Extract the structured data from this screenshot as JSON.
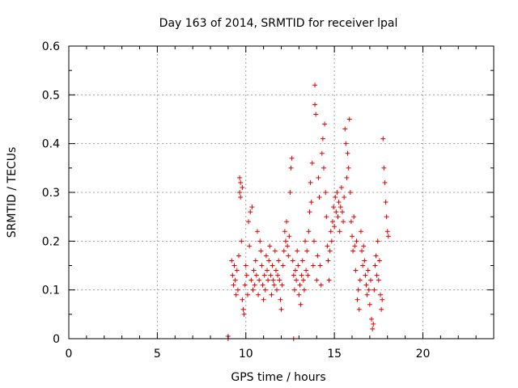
{
  "chart_data": {
    "type": "scatter",
    "title": "Day 163 of 2014, SRMTID for receiver lpal",
    "xlabel": "GPS time / hours",
    "ylabel": "SRMTID / TECUs",
    "xlim": [
      0,
      24
    ],
    "ylim": [
      0,
      0.6
    ],
    "xticks": [
      0,
      5,
      10,
      15,
      20
    ],
    "xtick_labels": [
      "0",
      "5",
      "10",
      "15",
      "20"
    ],
    "yticks": [
      0,
      0.1,
      0.2,
      0.3,
      0.4,
      0.5,
      0.6
    ],
    "ytick_labels": [
      "0",
      "0.1",
      "0.2",
      "0.3",
      "0.4",
      "0.5",
      "0.6"
    ],
    "grid": true,
    "marker": "+",
    "color": "#e00000",
    "series": [
      {
        "name": "SRMTID",
        "points": [
          [
            9.0,
            0.0
          ],
          [
            9.0,
            0.005
          ],
          [
            12.7,
            0.0
          ],
          [
            9.2,
            0.16
          ],
          [
            9.25,
            0.13
          ],
          [
            9.3,
            0.11
          ],
          [
            9.35,
            0.15
          ],
          [
            9.4,
            0.12
          ],
          [
            9.45,
            0.09
          ],
          [
            9.5,
            0.14
          ],
          [
            9.55,
            0.1
          ],
          [
            9.6,
            0.17
          ],
          [
            9.65,
            0.3
          ],
          [
            9.65,
            0.33
          ],
          [
            9.7,
            0.29
          ],
          [
            9.7,
            0.32
          ],
          [
            9.75,
            0.2
          ],
          [
            9.8,
            0.31
          ],
          [
            9.8,
            0.08
          ],
          [
            9.85,
            0.06
          ],
          [
            9.9,
            0.05
          ],
          [
            9.95,
            0.11
          ],
          [
            10.0,
            0.15
          ],
          [
            10.05,
            0.13
          ],
          [
            10.1,
            0.09
          ],
          [
            10.15,
            0.24
          ],
          [
            10.2,
            0.19
          ],
          [
            10.25,
            0.26
          ],
          [
            10.3,
            0.12
          ],
          [
            10.35,
            0.27
          ],
          [
            10.4,
            0.1
          ],
          [
            10.45,
            0.14
          ],
          [
            10.5,
            0.11
          ],
          [
            10.55,
            0.16
          ],
          [
            10.6,
            0.13
          ],
          [
            10.65,
            0.22
          ],
          [
            10.7,
            0.09
          ],
          [
            10.75,
            0.12
          ],
          [
            10.8,
            0.2
          ],
          [
            10.85,
            0.18
          ],
          [
            10.9,
            0.15
          ],
          [
            10.95,
            0.11
          ],
          [
            11.0,
            0.08
          ],
          [
            11.05,
            0.13
          ],
          [
            11.1,
            0.1
          ],
          [
            11.15,
            0.17
          ],
          [
            11.2,
            0.14
          ],
          [
            11.25,
            0.12
          ],
          [
            11.3,
            0.16
          ],
          [
            11.35,
            0.19
          ],
          [
            11.4,
            0.13
          ],
          [
            11.45,
            0.09
          ],
          [
            11.5,
            0.15
          ],
          [
            11.55,
            0.12
          ],
          [
            11.6,
            0.11
          ],
          [
            11.65,
            0.18
          ],
          [
            11.7,
            0.14
          ],
          [
            11.75,
            0.1
          ],
          [
            11.8,
            0.13
          ],
          [
            11.85,
            0.16
          ],
          [
            11.9,
            0.12
          ],
          [
            11.95,
            0.08
          ],
          [
            12.0,
            0.06
          ],
          [
            12.05,
            0.11
          ],
          [
            12.1,
            0.15
          ],
          [
            12.15,
            0.18
          ],
          [
            12.2,
            0.22
          ],
          [
            12.25,
            0.2
          ],
          [
            12.3,
            0.24
          ],
          [
            12.35,
            0.19
          ],
          [
            12.4,
            0.17
          ],
          [
            12.45,
            0.21
          ],
          [
            12.5,
            0.3
          ],
          [
            12.55,
            0.35
          ],
          [
            12.6,
            0.37
          ],
          [
            12.65,
            0.16
          ],
          [
            12.7,
            0.13
          ],
          [
            12.75,
            0.1
          ],
          [
            12.8,
            0.14
          ],
          [
            12.85,
            0.12
          ],
          [
            12.9,
            0.18
          ],
          [
            12.95,
            0.15
          ],
          [
            13.0,
            0.09
          ],
          [
            13.05,
            0.11
          ],
          [
            13.1,
            0.07
          ],
          [
            13.15,
            0.13
          ],
          [
            13.2,
            0.16
          ],
          [
            13.25,
            0.12
          ],
          [
            13.3,
            0.1
          ],
          [
            13.35,
            0.2
          ],
          [
            13.4,
            0.14
          ],
          [
            13.45,
            0.18
          ],
          [
            13.5,
            0.13
          ],
          [
            13.55,
            0.22
          ],
          [
            13.6,
            0.26
          ],
          [
            13.65,
            0.32
          ],
          [
            13.7,
            0.28
          ],
          [
            13.75,
            0.36
          ],
          [
            13.8,
            0.15
          ],
          [
            13.85,
            0.2
          ],
          [
            13.9,
            0.52
          ],
          [
            13.9,
            0.48
          ],
          [
            13.95,
            0.46
          ],
          [
            14.0,
            0.12
          ],
          [
            14.05,
            0.17
          ],
          [
            14.1,
            0.33
          ],
          [
            14.15,
            0.29
          ],
          [
            14.2,
            0.15
          ],
          [
            14.25,
            0.11
          ],
          [
            14.3,
            0.38
          ],
          [
            14.35,
            0.41
          ],
          [
            14.4,
            0.35
          ],
          [
            14.45,
            0.44
          ],
          [
            14.5,
            0.3
          ],
          [
            14.55,
            0.25
          ],
          [
            14.6,
            0.19
          ],
          [
            14.65,
            0.16
          ],
          [
            14.7,
            0.12
          ],
          [
            14.75,
            0.18
          ],
          [
            14.8,
            0.22
          ],
          [
            14.85,
            0.2
          ],
          [
            14.9,
            0.24
          ],
          [
            14.95,
            0.27
          ],
          [
            15.0,
            0.23
          ],
          [
            15.05,
            0.29
          ],
          [
            15.1,
            0.26
          ],
          [
            15.15,
            0.3
          ],
          [
            15.2,
            0.25
          ],
          [
            15.25,
            0.28
          ],
          [
            15.3,
            0.22
          ],
          [
            15.35,
            0.27
          ],
          [
            15.4,
            0.31
          ],
          [
            15.45,
            0.26
          ],
          [
            15.5,
            0.24
          ],
          [
            15.55,
            0.29
          ],
          [
            15.6,
            0.43
          ],
          [
            15.65,
            0.4
          ],
          [
            15.7,
            0.33
          ],
          [
            15.75,
            0.38
          ],
          [
            15.8,
            0.35
          ],
          [
            15.85,
            0.45
          ],
          [
            15.9,
            0.3
          ],
          [
            15.95,
            0.24
          ],
          [
            16.0,
            0.21
          ],
          [
            16.05,
            0.18
          ],
          [
            16.1,
            0.25
          ],
          [
            16.15,
            0.19
          ],
          [
            16.2,
            0.14
          ],
          [
            16.25,
            0.2
          ],
          [
            16.3,
            0.08
          ],
          [
            16.35,
            0.1
          ],
          [
            16.4,
            0.06
          ],
          [
            16.45,
            0.12
          ],
          [
            16.5,
            0.22
          ],
          [
            16.55,
            0.18
          ],
          [
            16.6,
            0.15
          ],
          [
            16.65,
            0.19
          ],
          [
            16.7,
            0.16
          ],
          [
            16.75,
            0.13
          ],
          [
            16.8,
            0.11
          ],
          [
            16.85,
            0.09
          ],
          [
            16.9,
            0.14
          ],
          [
            16.95,
            0.1
          ],
          [
            17.0,
            0.07
          ],
          [
            17.05,
            0.12
          ],
          [
            17.1,
            0.04
          ],
          [
            17.15,
            0.02
          ],
          [
            17.2,
            0.03
          ],
          [
            17.25,
            0.1
          ],
          [
            17.3,
            0.15
          ],
          [
            17.35,
            0.17
          ],
          [
            17.4,
            0.13
          ],
          [
            17.45,
            0.2
          ],
          [
            17.5,
            0.12
          ],
          [
            17.55,
            0.16
          ],
          [
            17.6,
            0.09
          ],
          [
            17.65,
            0.06
          ],
          [
            17.7,
            0.08
          ],
          [
            17.75,
            0.41
          ],
          [
            17.8,
            0.35
          ],
          [
            17.85,
            0.32
          ],
          [
            17.9,
            0.28
          ],
          [
            17.95,
            0.25
          ],
          [
            18.0,
            0.22
          ],
          [
            18.05,
            0.21
          ]
        ]
      }
    ]
  }
}
